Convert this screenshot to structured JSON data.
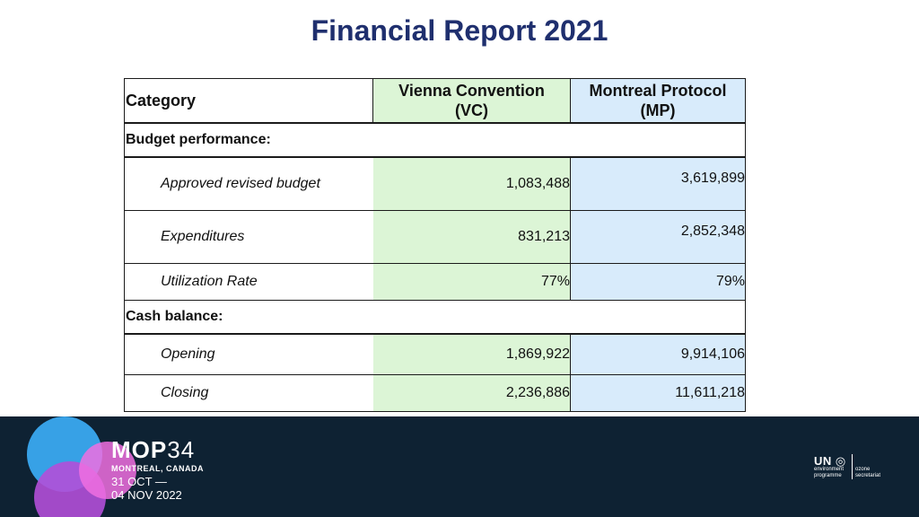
{
  "title": "Financial Report 2021",
  "table": {
    "header": {
      "category": "Category",
      "vc_line1": "Vienna Convention",
      "vc_line2": "(VC)",
      "mp_line1": "Montreal Protocol",
      "mp_line2": "(MP)"
    },
    "sections": [
      {
        "label": "Budget performance:",
        "rows": [
          {
            "label": "Approved revised budget",
            "vc": "1,083,488",
            "mp": "3,619,899"
          },
          {
            "label": "Expenditures",
            "vc": "831,213",
            "mp": "2,852,348"
          },
          {
            "label": "Utilization Rate",
            "vc": "77%",
            "mp": "79%"
          }
        ]
      },
      {
        "label": "Cash balance:",
        "rows": [
          {
            "label": "Opening",
            "vc": "1,869,922",
            "mp": "9,914,106"
          },
          {
            "label": "Closing",
            "vc": "2,236,886",
            "mp": "11,611,218"
          }
        ]
      }
    ]
  },
  "footer": {
    "event_bold": "MOP",
    "event_number": "34",
    "location": "MONTREAL, CANADA",
    "date_start": "31 OCT —",
    "date_end": "04 NOV 2022",
    "un_mark": "UN",
    "un_sub_line1": "environment",
    "un_sub_line2": "programme",
    "ozone_line1": "ozone",
    "ozone_line2": "secretariat",
    "colors": {
      "background": "#0e2233",
      "circle_blue": "#3aa9f0",
      "circle_purple": "#b24fd8",
      "circle_pink": "#f06ee0"
    }
  },
  "colors": {
    "title": "#1f2f6e",
    "vc_fill": "#dcf5d6",
    "mp_fill": "#d8ebfb"
  }
}
